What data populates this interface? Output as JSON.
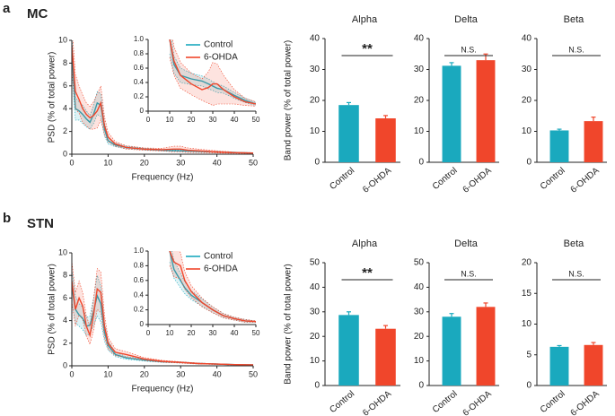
{
  "panels": [
    {
      "label": "a",
      "region": "MC"
    },
    {
      "label": "b",
      "region": "STN"
    }
  ],
  "chart_data": [
    {
      "type": "line",
      "xlabel": "Frequency (Hz)",
      "ylabel": "PSD (% of total power)",
      "xlim": [
        0,
        50
      ],
      "ylim": [
        0,
        10
      ],
      "xticks": [
        0,
        10,
        20,
        30,
        40,
        50
      ],
      "yticks": [
        0,
        2,
        4,
        6,
        8,
        10
      ],
      "x": [
        0,
        1,
        2,
        3,
        4,
        5,
        6,
        7,
        8,
        9,
        10,
        12,
        15,
        20,
        25,
        28,
        30,
        32,
        35,
        40,
        45,
        50
      ],
      "series": [
        {
          "color": "#1aa9be",
          "values": [
            9,
            4,
            3.8,
            3.5,
            3.1,
            2.8,
            3.5,
            4.5,
            4.3,
            2.2,
            1.2,
            0.8,
            0.6,
            0.45,
            0.35,
            0.32,
            0.3,
            0.28,
            0.25,
            0.2,
            0.15,
            0.1
          ],
          "errors": [
            1.5,
            1,
            0.8,
            0.8,
            0.7,
            0.6,
            0.8,
            1,
            1,
            0.6,
            0.3,
            0.15,
            0.1,
            0.08,
            0.06,
            0.06,
            0.06,
            0.05,
            0.05,
            0.04,
            0.03,
            0.02
          ]
        },
        {
          "color": "#f0462b",
          "values": [
            9.5,
            5.5,
            4.8,
            4,
            3.5,
            3.2,
            3.4,
            3.8,
            4.5,
            2.5,
            1.5,
            0.9,
            0.6,
            0.45,
            0.4,
            0.45,
            0.45,
            0.35,
            0.3,
            0.2,
            0.13,
            0.1
          ],
          "errors": [
            2,
            1.5,
            1.2,
            1.2,
            1,
            1,
            1.2,
            1.5,
            1.5,
            0.8,
            0.4,
            0.2,
            0.15,
            0.1,
            0.12,
            0.25,
            0.25,
            0.2,
            0.15,
            0.1,
            0.05,
            0.03
          ]
        }
      ]
    },
    {
      "type": "line",
      "legend": "upper right",
      "xlim": [
        0,
        50
      ],
      "ylim": [
        0,
        1
      ],
      "xticks": [
        0,
        10,
        20,
        30,
        40,
        50
      ],
      "yticks": [
        0,
        0.2,
        0.4,
        0.6,
        0.8,
        {
          "value": 1,
          "label": "1.0"
        }
      ],
      "x": [
        10,
        12,
        15,
        20,
        25,
        28,
        30,
        32,
        35,
        40,
        45,
        50
      ],
      "series": [
        {
          "name": "Control",
          "color": "#1aa9be",
          "values": [
            1,
            0.65,
            0.5,
            0.45,
            0.42,
            0.38,
            0.35,
            0.32,
            0.3,
            0.22,
            0.15,
            0.1
          ],
          "errors": [
            0.2,
            0.12,
            0.1,
            0.08,
            0.07,
            0.07,
            0.06,
            0.06,
            0.05,
            0.04,
            0.03,
            0.02
          ]
        },
        {
          "name": "6-OHDA",
          "color": "#f0462b",
          "values": [
            1,
            0.7,
            0.5,
            0.38,
            0.3,
            0.33,
            0.38,
            0.38,
            0.3,
            0.2,
            0.13,
            0.1
          ],
          "errors": [
            0.25,
            0.2,
            0.18,
            0.15,
            0.15,
            0.22,
            0.3,
            0.28,
            0.2,
            0.1,
            0.05,
            0.03
          ]
        }
      ]
    },
    {
      "type": "bar",
      "title": "Alpha",
      "ylabel": "Band power (% of total power)",
      "annotation": "**",
      "categories": [
        "Control",
        "6-OHDA"
      ],
      "colors": [
        "#1aa9be",
        "#f0462b"
      ],
      "values": [
        18.5,
        14.2
      ],
      "errors": [
        0.8,
        0.9
      ],
      "ylim": [
        0,
        40
      ],
      "yticks": [
        0,
        10,
        20,
        30,
        40
      ]
    },
    {
      "type": "bar",
      "title": "Delta",
      "annotation": "N.S.",
      "categories": [
        "Control",
        "6-OHDA"
      ],
      "colors": [
        "#1aa9be",
        "#f0462b"
      ],
      "values": [
        31.2,
        33
      ],
      "errors": [
        1,
        2
      ],
      "ylim": [
        0,
        40
      ],
      "yticks": [
        0,
        10,
        20,
        30,
        40
      ]
    },
    {
      "type": "bar",
      "title": "Beta",
      "annotation": "N.S.",
      "categories": [
        "Control",
        "6-OHDA"
      ],
      "colors": [
        "#1aa9be",
        "#f0462b"
      ],
      "values": [
        10.3,
        13.3
      ],
      "errors": [
        0.4,
        1.3
      ],
      "ylim": [
        0,
        40
      ],
      "yticks": [
        0,
        10,
        20,
        30,
        40
      ]
    },
    {
      "type": "line",
      "xlabel": "Frequency (Hz)",
      "ylabel": "PSD (% of total power)",
      "xlim": [
        0,
        50
      ],
      "ylim": [
        0,
        10
      ],
      "xticks": [
        0,
        10,
        20,
        30,
        40,
        50
      ],
      "yticks": [
        0,
        2,
        4,
        6,
        8,
        10
      ],
      "x": [
        0,
        1,
        2,
        3,
        4,
        5,
        6,
        7,
        8,
        9,
        10,
        12,
        15,
        20,
        25,
        30,
        35,
        40,
        45,
        50
      ],
      "series": [
        {
          "color": "#1aa9be",
          "values": [
            7,
            5,
            4.5,
            4.2,
            3.5,
            3.6,
            4.8,
            6.2,
            5.5,
            3,
            1.8,
            1,
            0.7,
            0.5,
            0.35,
            0.3,
            0.2,
            0.15,
            0.1,
            0.08
          ],
          "errors": [
            1.5,
            1.2,
            1,
            1,
            0.8,
            0.8,
            1.2,
            1.8,
            1.6,
            0.8,
            0.4,
            0.2,
            0.12,
            0.08,
            0.06,
            0.05,
            0.04,
            0.03,
            0.02,
            0.02
          ]
        },
        {
          "color": "#f0462b",
          "values": [
            7.5,
            5,
            6,
            5.3,
            3.5,
            2.7,
            4.5,
            6.8,
            6.5,
            3.5,
            2,
            1.2,
            1,
            0.6,
            0.4,
            0.3,
            0.2,
            0.15,
            0.1,
            0.08
          ],
          "errors": [
            1.8,
            1.5,
            1.5,
            1.2,
            0.9,
            0.8,
            1.4,
            1.8,
            1.8,
            1,
            0.5,
            0.3,
            0.25,
            0.12,
            0.08,
            0.06,
            0.05,
            0.03,
            0.02,
            0.02
          ]
        }
      ]
    },
    {
      "type": "line",
      "legend": "upper right",
      "xlim": [
        0,
        50
      ],
      "ylim": [
        0,
        1
      ],
      "xticks": [
        0,
        10,
        20,
        30,
        40,
        50
      ],
      "yticks": [
        0,
        0.2,
        0.4,
        0.6,
        0.8,
        {
          "value": 1,
          "label": "1.0"
        }
      ],
      "x": [
        10,
        12,
        15,
        17,
        20,
        25,
        30,
        35,
        40,
        45,
        50
      ],
      "series": [
        {
          "name": "Control",
          "color": "#1aa9be",
          "values": [
            1,
            0.75,
            0.6,
            0.5,
            0.4,
            0.3,
            0.2,
            0.12,
            0.08,
            0.05,
            0.04
          ],
          "errors": [
            0.15,
            0.12,
            0.1,
            0.08,
            0.06,
            0.05,
            0.04,
            0.03,
            0.02,
            0.02,
            0.01
          ]
        },
        {
          "name": "6-OHDA",
          "color": "#f0462b",
          "values": [
            1,
            0.85,
            0.8,
            0.6,
            0.45,
            0.3,
            0.2,
            0.12,
            0.08,
            0.05,
            0.04
          ],
          "errors": [
            0.2,
            0.2,
            0.18,
            0.12,
            0.08,
            0.06,
            0.04,
            0.03,
            0.02,
            0.02,
            0.01
          ]
        }
      ]
    },
    {
      "type": "bar",
      "title": "Alpha",
      "ylabel": "Band power (% of total power)",
      "annotation": "**",
      "categories": [
        "Control",
        "6-OHDA"
      ],
      "colors": [
        "#1aa9be",
        "#f0462b"
      ],
      "values": [
        28.7,
        23.1
      ],
      "errors": [
        1.3,
        1.3
      ],
      "ylim": [
        0,
        50
      ],
      "yticks": [
        0,
        10,
        20,
        30,
        40,
        50
      ]
    },
    {
      "type": "bar",
      "title": "Delta",
      "annotation": "N.S.",
      "categories": [
        "Control",
        "6-OHDA"
      ],
      "colors": [
        "#1aa9be",
        "#f0462b"
      ],
      "values": [
        28,
        32
      ],
      "errors": [
        1.3,
        1.6
      ],
      "ylim": [
        0,
        50
      ],
      "yticks": [
        0,
        10,
        20,
        30,
        40,
        50
      ]
    },
    {
      "type": "bar",
      "title": "Beta",
      "annotation": "N.S.",
      "categories": [
        "Control",
        "6-OHDA"
      ],
      "colors": [
        "#1aa9be",
        "#f0462b"
      ],
      "values": [
        6.3,
        6.6
      ],
      "errors": [
        0.2,
        0.4
      ],
      "ylim": [
        0,
        20
      ],
      "yticks": [
        0,
        5,
        10,
        15,
        20
      ]
    }
  ]
}
